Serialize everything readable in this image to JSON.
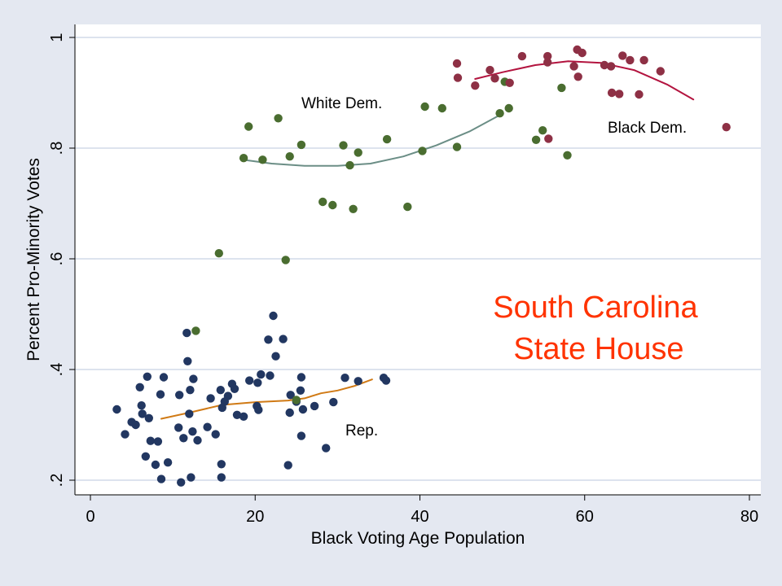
{
  "chart_data": {
    "type": "scatter",
    "title_lines": [
      "South Carolina",
      "State House"
    ],
    "xlabel": "Black Voting Age Population",
    "ylabel": "Percent Pro-Minority Votes",
    "xlim": [
      0,
      80
    ],
    "ylim": [
      0.2,
      1.0
    ],
    "x_ticks": [
      0,
      20,
      40,
      60,
      80
    ],
    "x_tick_labels": [
      "0",
      "20",
      "40",
      "60",
      "80"
    ],
    "y_ticks": [
      0.2,
      0.4,
      0.6,
      0.8,
      1.0
    ],
    "y_tick_labels": [
      ".2",
      ".4",
      ".6",
      ".8",
      "1"
    ],
    "grid": true,
    "colors": {
      "background": "#e4e8f1",
      "plot_area": "#ffffff",
      "gridline": "#dde3ee",
      "title": "#ff3300"
    },
    "series": [
      {
        "label": "Rep.",
        "color": "#223761",
        "fit_color": "#d07a15",
        "points": [
          [
            3.2,
            0.328
          ],
          [
            4.2,
            0.283
          ],
          [
            5.0,
            0.305
          ],
          [
            5.5,
            0.3
          ],
          [
            6.0,
            0.368
          ],
          [
            6.2,
            0.335
          ],
          [
            6.3,
            0.32
          ],
          [
            6.7,
            0.243
          ],
          [
            6.9,
            0.387
          ],
          [
            7.1,
            0.312
          ],
          [
            7.3,
            0.271
          ],
          [
            7.9,
            0.228
          ],
          [
            8.2,
            0.27
          ],
          [
            8.5,
            0.355
          ],
          [
            8.6,
            0.202
          ],
          [
            8.9,
            0.386
          ],
          [
            9.4,
            0.232
          ],
          [
            10.7,
            0.295
          ],
          [
            10.8,
            0.354
          ],
          [
            11.0,
            0.196
          ],
          [
            11.3,
            0.276
          ],
          [
            11.7,
            0.466
          ],
          [
            11.8,
            0.415
          ],
          [
            12.0,
            0.32
          ],
          [
            12.1,
            0.363
          ],
          [
            12.2,
            0.205
          ],
          [
            12.4,
            0.288
          ],
          [
            12.5,
            0.383
          ],
          [
            13.0,
            0.272
          ],
          [
            14.2,
            0.296
          ],
          [
            14.6,
            0.348
          ],
          [
            15.2,
            0.283
          ],
          [
            15.8,
            0.363
          ],
          [
            15.9,
            0.229
          ],
          [
            15.9,
            0.205
          ],
          [
            16.0,
            0.331
          ],
          [
            16.3,
            0.342
          ],
          [
            16.7,
            0.352
          ],
          [
            17.2,
            0.374
          ],
          [
            17.5,
            0.365
          ],
          [
            17.8,
            0.318
          ],
          [
            18.6,
            0.315
          ],
          [
            19.3,
            0.38
          ],
          [
            20.2,
            0.334
          ],
          [
            20.3,
            0.376
          ],
          [
            20.4,
            0.327
          ],
          [
            20.7,
            0.391
          ],
          [
            21.6,
            0.454
          ],
          [
            21.8,
            0.389
          ],
          [
            22.2,
            0.497
          ],
          [
            22.5,
            0.424
          ],
          [
            23.4,
            0.455
          ],
          [
            24.0,
            0.227
          ],
          [
            24.2,
            0.322
          ],
          [
            24.3,
            0.354
          ],
          [
            25.0,
            0.342
          ],
          [
            25.5,
            0.362
          ],
          [
            25.6,
            0.386
          ],
          [
            25.6,
            0.28
          ],
          [
            25.8,
            0.328
          ],
          [
            27.2,
            0.334
          ],
          [
            28.6,
            0.258
          ],
          [
            29.5,
            0.341
          ],
          [
            30.9,
            0.385
          ],
          [
            32.5,
            0.379
          ],
          [
            35.6,
            0.385
          ],
          [
            35.9,
            0.38
          ]
        ],
        "fit": [
          [
            8.6,
            0.311
          ],
          [
            12.0,
            0.322
          ],
          [
            16.0,
            0.336
          ],
          [
            20.0,
            0.341
          ],
          [
            24.0,
            0.344
          ],
          [
            26.0,
            0.348
          ],
          [
            28.0,
            0.357
          ],
          [
            30.0,
            0.362
          ],
          [
            32.0,
            0.37
          ],
          [
            34.2,
            0.382
          ]
        ]
      },
      {
        "label": "White Dem.",
        "color": "#4a6d30",
        "fit_color": "#6b8e86",
        "points": [
          [
            12.8,
            0.47
          ],
          [
            15.6,
            0.61
          ],
          [
            18.6,
            0.782
          ],
          [
            19.2,
            0.839
          ],
          [
            20.9,
            0.779
          ],
          [
            22.8,
            0.854
          ],
          [
            23.7,
            0.598
          ],
          [
            24.2,
            0.785
          ],
          [
            25.6,
            0.806
          ],
          [
            28.2,
            0.703
          ],
          [
            29.4,
            0.697
          ],
          [
            30.7,
            0.805
          ],
          [
            31.5,
            0.769
          ],
          [
            31.9,
            0.69
          ],
          [
            32.5,
            0.792
          ],
          [
            36.0,
            0.816
          ],
          [
            38.5,
            0.694
          ],
          [
            40.3,
            0.795
          ],
          [
            40.6,
            0.875
          ],
          [
            42.7,
            0.872
          ],
          [
            44.5,
            0.802
          ],
          [
            49.7,
            0.863
          ],
          [
            50.3,
            0.92
          ],
          [
            50.8,
            0.872
          ],
          [
            54.1,
            0.815
          ],
          [
            54.9,
            0.832
          ],
          [
            57.2,
            0.909
          ],
          [
            57.9,
            0.787
          ],
          [
            25.0,
            0.345
          ]
        ],
        "fit": [
          [
            18.5,
            0.779
          ],
          [
            22.0,
            0.772
          ],
          [
            26.0,
            0.768
          ],
          [
            30.0,
            0.768
          ],
          [
            34.0,
            0.772
          ],
          [
            38.0,
            0.785
          ],
          [
            42.0,
            0.805
          ],
          [
            46.0,
            0.83
          ],
          [
            50.0,
            0.862
          ]
        ]
      },
      {
        "label": "Black Dem.",
        "color": "#8e3045",
        "fit_color": "#b3143f",
        "points": [
          [
            44.5,
            0.953
          ],
          [
            44.6,
            0.927
          ],
          [
            46.7,
            0.913
          ],
          [
            48.5,
            0.941
          ],
          [
            49.1,
            0.926
          ],
          [
            50.9,
            0.918
          ],
          [
            52.4,
            0.966
          ],
          [
            55.5,
            0.966
          ],
          [
            55.5,
            0.955
          ],
          [
            55.6,
            0.817
          ],
          [
            58.7,
            0.948
          ],
          [
            59.1,
            0.978
          ],
          [
            59.2,
            0.929
          ],
          [
            59.7,
            0.972
          ],
          [
            62.4,
            0.95
          ],
          [
            63.2,
            0.948
          ],
          [
            63.3,
            0.9
          ],
          [
            64.2,
            0.898
          ],
          [
            64.6,
            0.967
          ],
          [
            65.5,
            0.959
          ],
          [
            66.6,
            0.897
          ],
          [
            67.2,
            0.959
          ],
          [
            69.2,
            0.939
          ],
          [
            77.2,
            0.838
          ]
        ],
        "fit": [
          [
            46.7,
            0.925
          ],
          [
            50.0,
            0.937
          ],
          [
            54.0,
            0.95
          ],
          [
            58.0,
            0.957
          ],
          [
            62.0,
            0.954
          ],
          [
            66.0,
            0.941
          ],
          [
            70.0,
            0.915
          ],
          [
            73.2,
            0.888
          ]
        ]
      }
    ]
  }
}
